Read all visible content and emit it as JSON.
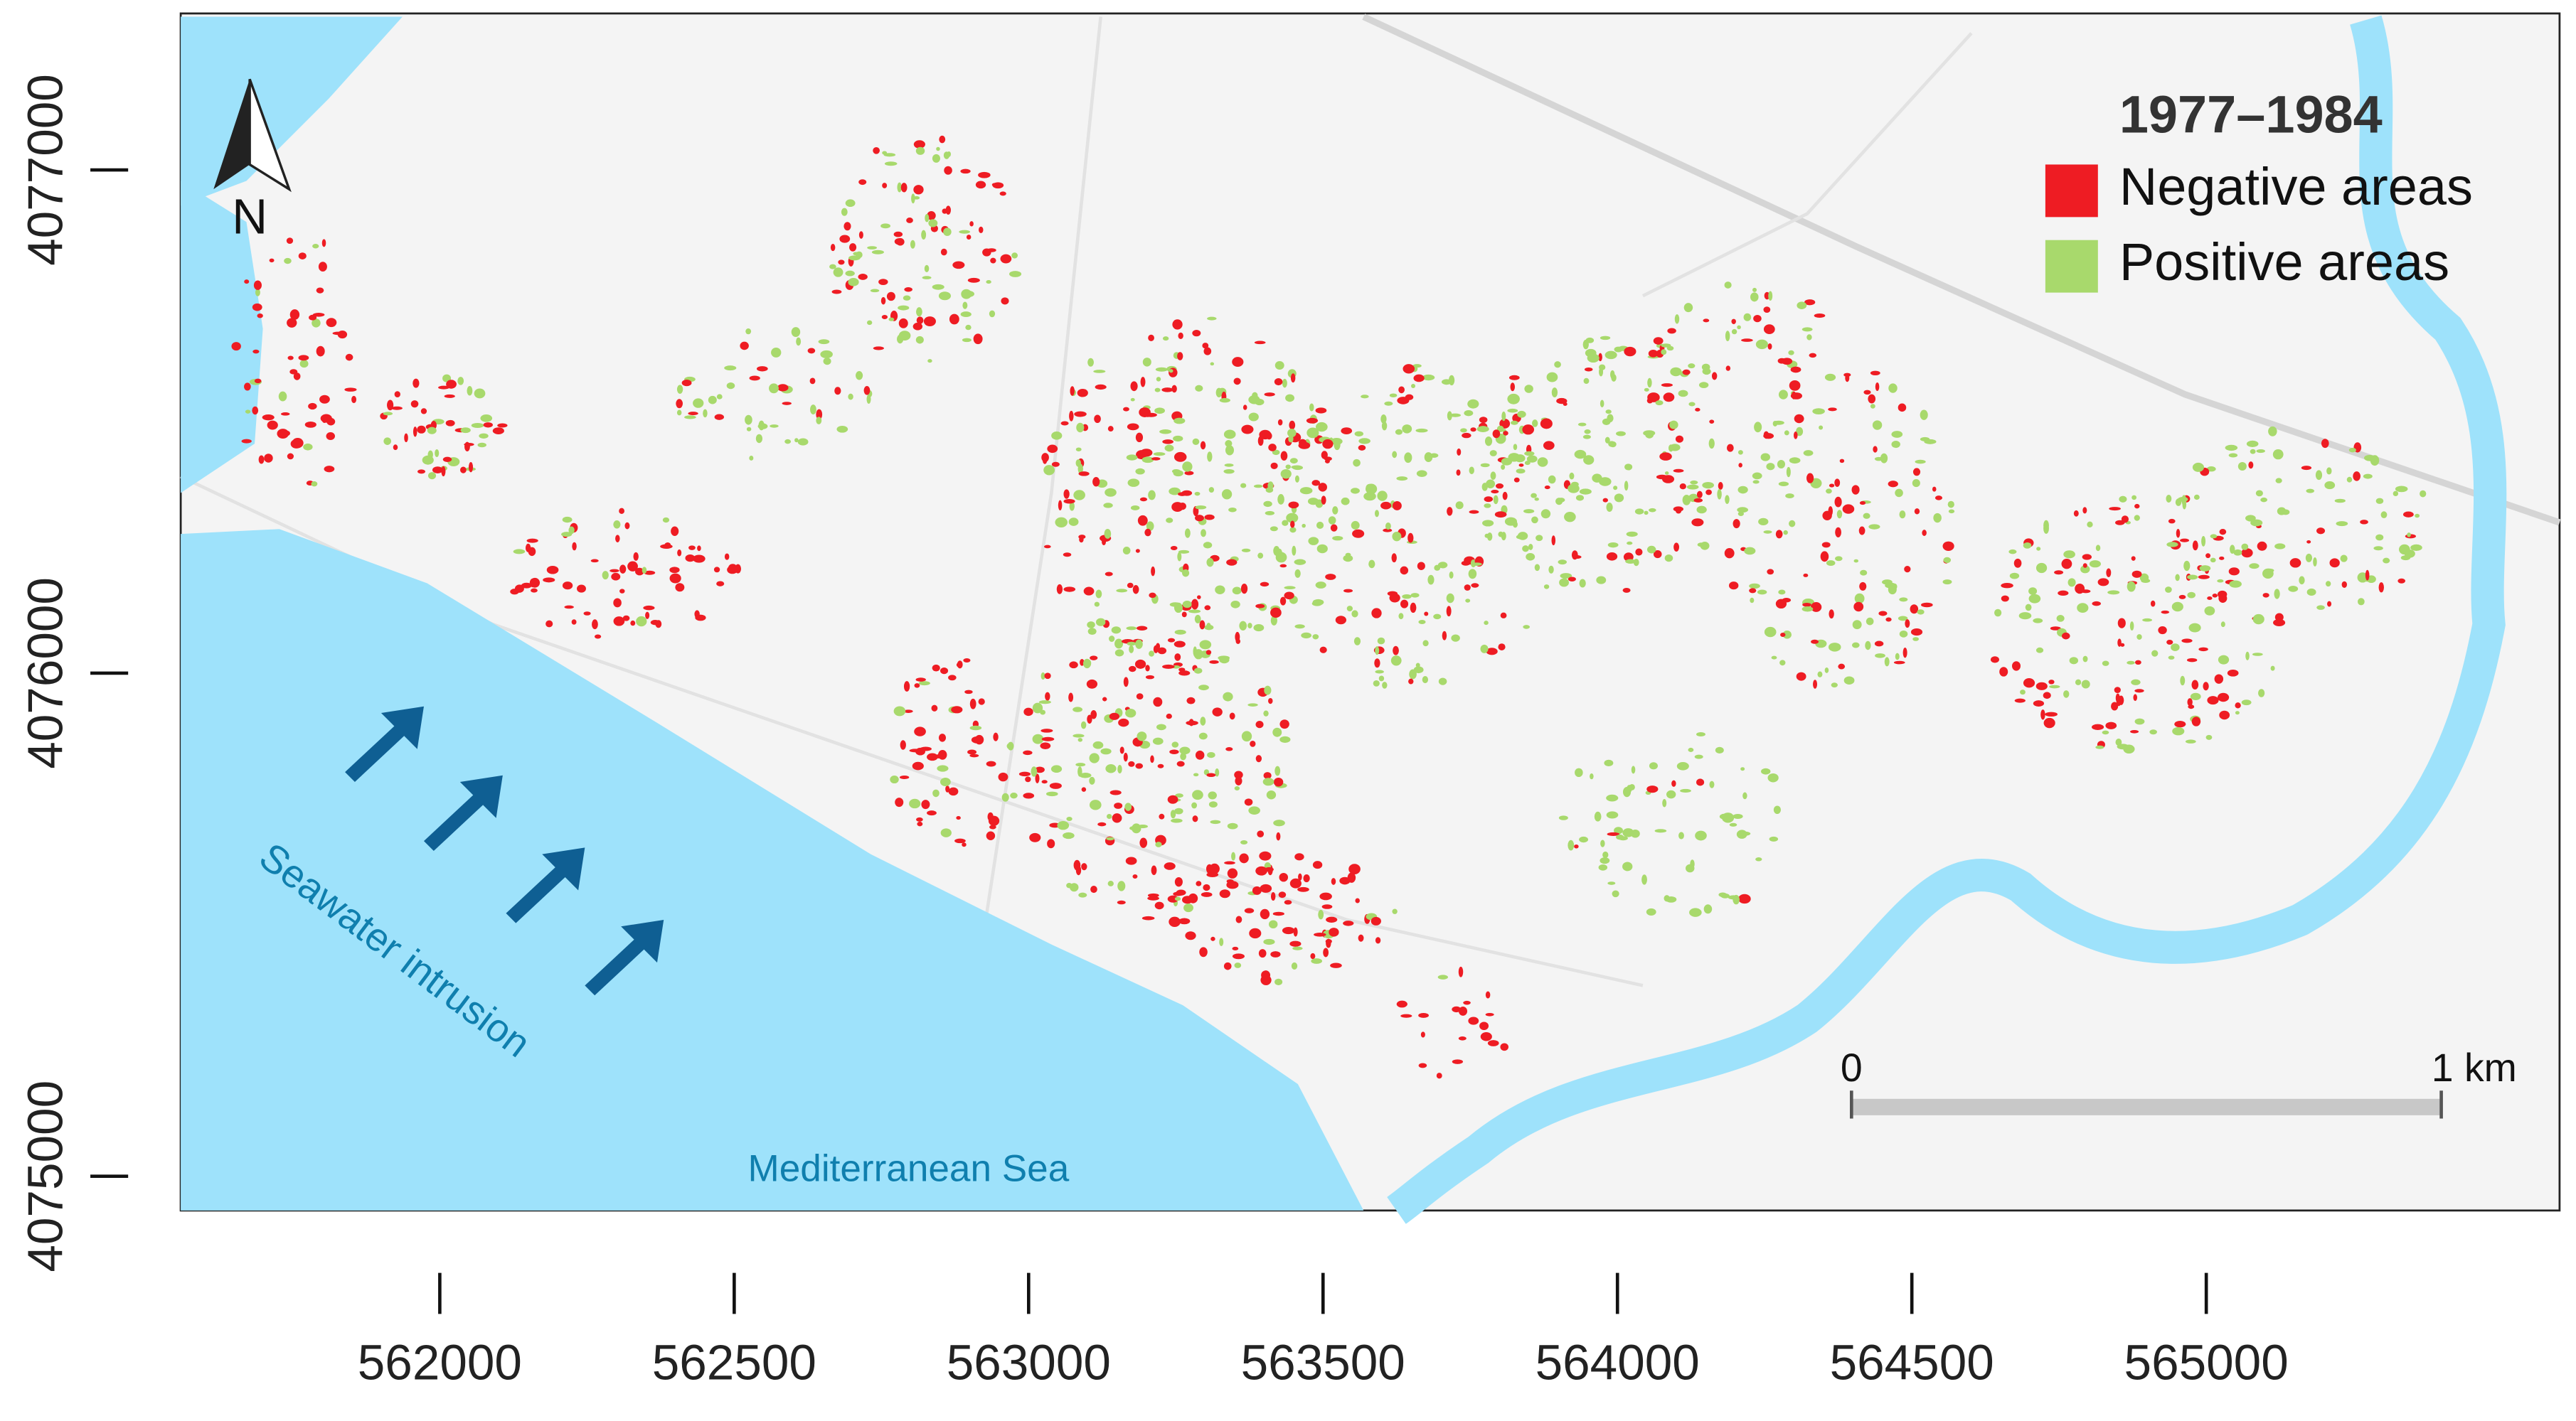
{
  "map": {
    "title": "1977–1984",
    "legend": [
      {
        "label": "Negative areas",
        "color": "#ee1c23"
      },
      {
        "label": "Positive areas",
        "color": "#a8d96c"
      }
    ],
    "north": "N",
    "annotations": {
      "intrusion": "Seawater intrusion",
      "sea": "Mediterranean Sea"
    },
    "scale_bar": {
      "start": "0",
      "end": "1 km"
    },
    "xlim": [
      561560,
      565600
    ],
    "ylim": [
      4074932,
      4077311
    ],
    "xticks": [
      562000,
      562500,
      563000,
      563500,
      564000,
      564500,
      565000
    ],
    "yticks": [
      4075000,
      4076000,
      4077000
    ]
  }
}
